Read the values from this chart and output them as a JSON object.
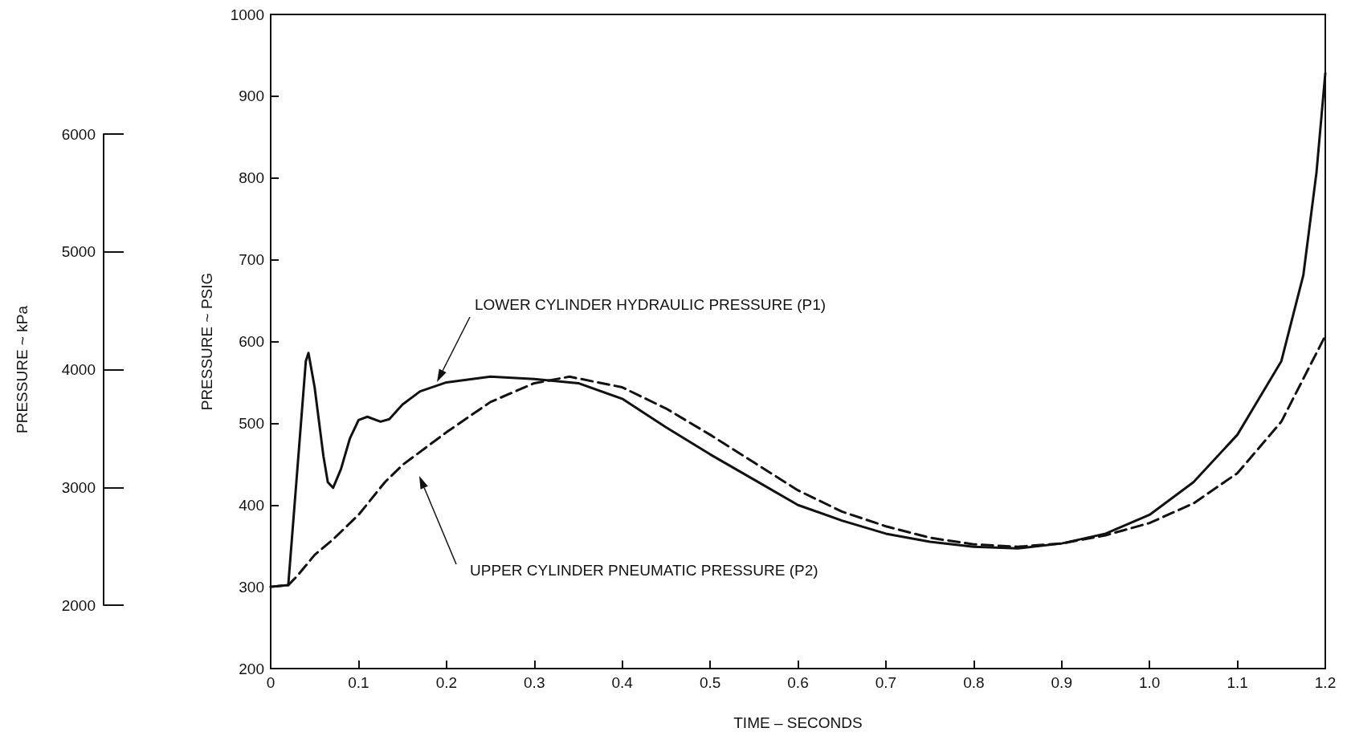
{
  "chart_data": {
    "type": "line",
    "xlabel": "TIME – SECONDS",
    "ylabel": "PRESSURE ~ PSIG",
    "y2label": "PRESSURE ~ kPa",
    "xlim": [
      0,
      1.2
    ],
    "xticks": [
      0,
      0.1,
      0.2,
      0.3,
      0.4,
      0.5,
      0.6,
      0.7,
      0.8,
      0.9,
      {
        "value": 1,
        "label": "1.0"
      },
      1.1,
      1.2
    ],
    "ylim": [
      200,
      1000
    ],
    "yticks": [
      200,
      300,
      400,
      500,
      600,
      700,
      800,
      900,
      1000
    ],
    "y2lim": [
      2000,
      6000
    ],
    "y2ticks": [
      2000,
      3000,
      4000,
      5000,
      6000
    ],
    "grid": false,
    "annotations": [
      "LOWER CYLINDER HYDRAULIC PRESSURE (P1)",
      "UPPER CYLINDER PNEUMATIC PRESSURE (P2)"
    ],
    "series": [
      {
        "color": "#111111",
        "line_style": "solid",
        "x": [
          0,
          0.02,
          0.03,
          0.04,
          0.043,
          0.05,
          0.06,
          0.065,
          0.071,
          0.08,
          0.09,
          0.1,
          0.11,
          0.125,
          0.135,
          0.15,
          0.17,
          0.2,
          0.25,
          0.3,
          0.35,
          0.4,
          0.45,
          0.5,
          0.55,
          0.6,
          0.65,
          0.7,
          0.75,
          0.8,
          0.85,
          0.9,
          0.95,
          1.0,
          1.05,
          1.1,
          1.15,
          1.175,
          1.19,
          1.2
        ],
        "values": [
          300,
          302,
          439,
          576,
          586,
          544,
          460,
          428,
          421,
          444,
          481,
          504,
          508,
          502,
          505,
          523,
          539,
          550,
          557,
          554,
          549,
          530,
          495,
          462,
          431,
          400,
          381,
          365,
          355,
          349,
          347,
          353,
          365,
          388,
          428,
          486,
          576,
          681,
          807,
          928
        ]
      },
      {
        "color": "#111111",
        "line_style": "dashed",
        "x": [
          0,
          0.02,
          0.03,
          0.05,
          0.07,
          0.1,
          0.13,
          0.15,
          0.2,
          0.25,
          0.3,
          0.34,
          0.4,
          0.45,
          0.5,
          0.55,
          0.6,
          0.65,
          0.7,
          0.75,
          0.8,
          0.85,
          0.9,
          0.95,
          1.0,
          1.05,
          1.1,
          1.15,
          1.2
        ],
        "values": [
          300,
          302,
          313,
          339,
          357,
          388,
          428,
          449,
          489,
          526,
          549,
          557,
          544,
          518,
          486,
          452,
          418,
          392,
          374,
          360,
          352,
          349,
          353,
          363,
          378,
          402,
          439,
          502,
          607
        ]
      }
    ]
  }
}
